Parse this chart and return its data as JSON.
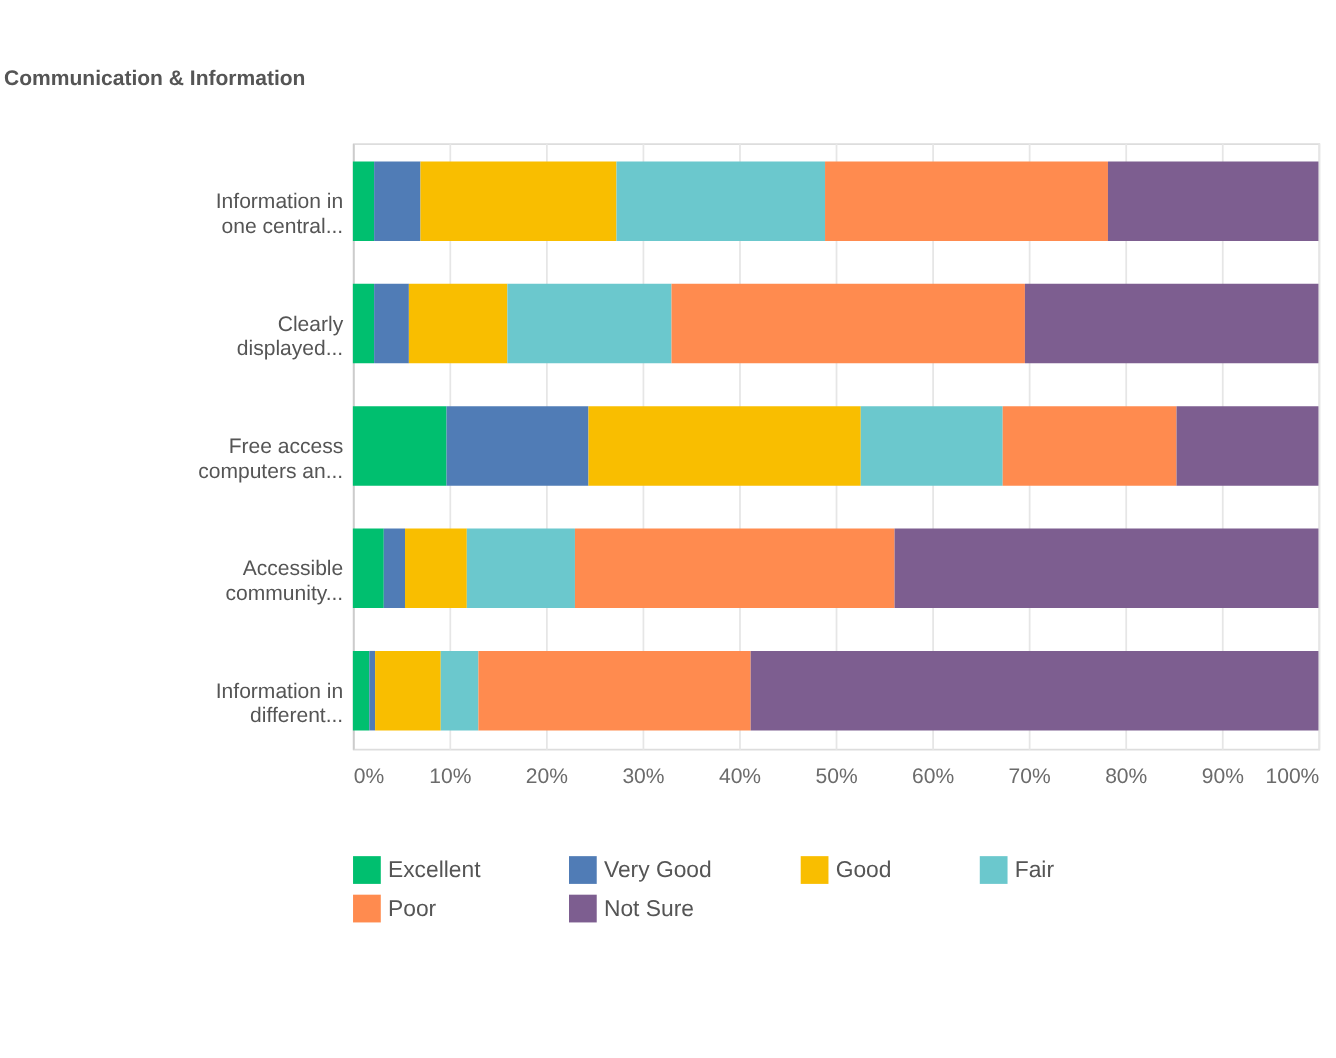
{
  "chart_data": {
    "type": "bar",
    "title": "Communication & Information",
    "orientation": "horizontal",
    "stacked": true,
    "categories": [
      "Information in one central...",
      "Clearly displayed...",
      "Free access computers an...",
      "Accessible community...",
      "Information in different..."
    ],
    "series": [
      {
        "name": "Excellent",
        "color": "#00bf6f",
        "values": [
          2.2,
          2.2,
          9.7,
          3.2,
          1.7
        ]
      },
      {
        "name": "Very Good",
        "color": "#507cb6",
        "values": [
          4.8,
          3.6,
          14.7,
          2.2,
          0.6
        ]
      },
      {
        "name": "Good",
        "color": "#f9be00",
        "values": [
          20.3,
          10.2,
          28.2,
          6.4,
          6.8
        ]
      },
      {
        "name": "Fair",
        "color": "#6bc8cd",
        "values": [
          21.6,
          17.0,
          14.7,
          11.2,
          3.9
        ]
      },
      {
        "name": "Poor",
        "color": "#ff8b4f",
        "values": [
          29.3,
          36.6,
          18.0,
          33.1,
          28.2
        ]
      },
      {
        "name": "Not Sure",
        "color": "#7d5e90",
        "values": [
          21.8,
          30.4,
          14.7,
          43.9,
          58.8
        ]
      }
    ],
    "xlim": [
      0,
      100
    ],
    "xticks": [
      {
        "value": 0,
        "label": "0%"
      },
      {
        "value": 10,
        "label": "10%"
      },
      {
        "value": 20,
        "label": "20%"
      },
      {
        "value": 30,
        "label": "30%"
      },
      {
        "value": 40,
        "label": "40%"
      },
      {
        "value": 50,
        "label": "50%"
      },
      {
        "value": 60,
        "label": "60%"
      },
      {
        "value": 70,
        "label": "70%"
      },
      {
        "value": 80,
        "label": "80%"
      },
      {
        "value": 90,
        "label": "90%"
      },
      {
        "value": 100,
        "label": "100%"
      }
    ],
    "grid": "x",
    "legend": "bottom"
  }
}
